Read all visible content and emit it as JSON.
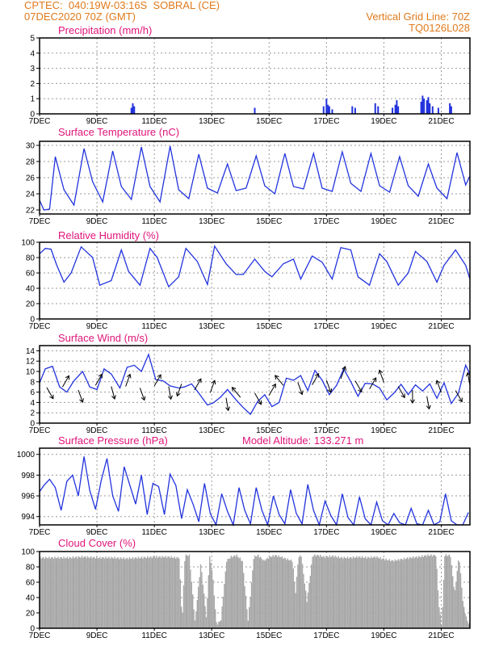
{
  "header": {
    "left_line1": "CPTEC:  040:19W-03:16S  SOBRAL (CE)",
    "left_line2": "07DEC2020 70Z (GMT)",
    "right_line1": "Vertical Grid Line: 70Z",
    "right_line2": "TQ0126L028"
  },
  "colors": {
    "header": "#e07a1c",
    "title": "#e0157a",
    "line": "#2233dd",
    "bar": "#2233dd",
    "cloud": "#a8a8a8"
  },
  "x_ticks": [
    "7DEC",
    "9DEC",
    "11DEC",
    "13DEC",
    "15DEC",
    "17DEC",
    "19DEC",
    "21DEC"
  ],
  "chart_data": [
    {
      "type": "bar",
      "title": "Precipitation (mm/h)",
      "x_start_day": 7,
      "x_end_day": 22,
      "ylim": [
        0,
        5
      ],
      "yticks": [
        0,
        1,
        2,
        3,
        4,
        5
      ],
      "x": [
        10.2,
        10.25,
        10.3,
        14.5,
        16.9,
        17.0,
        17.05,
        17.1,
        17.2,
        17.9,
        18.0,
        18.7,
        18.8,
        19.3,
        19.4,
        19.45,
        19.5,
        20.3,
        20.35,
        20.4,
        20.5,
        20.55,
        20.6,
        20.7,
        20.9,
        21.3,
        21.35
      ],
      "values": [
        0.4,
        0.7,
        0.5,
        0.4,
        0.5,
        1.0,
        0.6,
        0.5,
        0.3,
        0.5,
        0.4,
        0.7,
        0.5,
        0.4,
        0.6,
        0.9,
        0.5,
        0.8,
        1.2,
        1.0,
        0.9,
        1.1,
        0.7,
        0.5,
        0.4,
        0.7,
        0.5
      ]
    },
    {
      "type": "line",
      "title": "Surface Temperature (nC)",
      "x_start_day": 7,
      "x_end_day": 22,
      "ylim": [
        21.5,
        30.5
      ],
      "yticks": [
        22,
        24,
        26,
        28,
        30
      ],
      "x": [
        7.0,
        7.15,
        7.35,
        7.55,
        7.85,
        8.2,
        8.55,
        8.85,
        9.2,
        9.55,
        9.85,
        10.2,
        10.55,
        10.85,
        11.2,
        11.55,
        11.85,
        12.2,
        12.55,
        12.85,
        13.2,
        13.55,
        13.85,
        14.2,
        14.55,
        14.85,
        15.2,
        15.55,
        15.85,
        16.2,
        16.55,
        16.85,
        17.2,
        17.55,
        17.85,
        18.2,
        18.55,
        18.85,
        19.2,
        19.55,
        19.85,
        20.2,
        20.55,
        20.85,
        21.2,
        21.55,
        21.85,
        22.0
      ],
      "values": [
        23.2,
        22.0,
        22.1,
        28.6,
        24.5,
        22.6,
        29.6,
        25.5,
        23.0,
        29.3,
        24.9,
        23.3,
        29.8,
        24.9,
        23.0,
        29.9,
        24.5,
        23.4,
        28.9,
        24.7,
        24.1,
        27.7,
        24.4,
        24.7,
        28.7,
        25.0,
        24.0,
        29.0,
        24.9,
        24.6,
        29.0,
        24.7,
        24.3,
        29.2,
        25.3,
        24.3,
        29.0,
        25.0,
        24.2,
        28.6,
        25.0,
        23.7,
        27.7,
        24.7,
        23.4,
        29.1,
        25.1,
        26.2
      ]
    },
    {
      "type": "line",
      "title": "Relative Humidity (%)",
      "x_start_day": 7,
      "x_end_day": 22,
      "ylim": [
        0,
        100
      ],
      "yticks": [
        0,
        20,
        40,
        60,
        80,
        100
      ],
      "x": [
        7.0,
        7.2,
        7.4,
        7.6,
        7.85,
        8.1,
        8.45,
        8.85,
        9.1,
        9.5,
        9.85,
        10.1,
        10.5,
        10.85,
        11.1,
        11.5,
        11.85,
        12.1,
        12.5,
        12.85,
        13.1,
        13.5,
        13.85,
        14.1,
        14.5,
        14.85,
        15.1,
        15.5,
        15.85,
        16.1,
        16.5,
        16.85,
        17.2,
        17.5,
        17.85,
        18.1,
        18.5,
        18.85,
        19.1,
        19.5,
        19.85,
        20.1,
        20.5,
        20.85,
        21.1,
        21.5,
        21.85,
        22.0
      ],
      "values": [
        85,
        92,
        91,
        70,
        48,
        60,
        94,
        80,
        44,
        50,
        90,
        62,
        44,
        92,
        80,
        42,
        55,
        92,
        75,
        45,
        95,
        72,
        58,
        58,
        78,
        62,
        55,
        72,
        78,
        52,
        82,
        74,
        52,
        93,
        90,
        55,
        44,
        85,
        75,
        44,
        60,
        88,
        75,
        48,
        70,
        90,
        70,
        52
      ]
    },
    {
      "type": "line",
      "title": "Surface Wind (m/s)",
      "x_start_day": 7,
      "x_end_day": 22,
      "ylim": [
        0,
        15
      ],
      "yticks": [
        0,
        2,
        4,
        6,
        8,
        10,
        12,
        14
      ],
      "x": [
        7.0,
        7.2,
        7.45,
        7.7,
        7.95,
        8.2,
        8.5,
        8.75,
        9.0,
        9.25,
        9.5,
        9.8,
        10.05,
        10.3,
        10.55,
        10.8,
        11.05,
        11.3,
        11.55,
        11.85,
        12.05,
        12.3,
        12.55,
        12.85,
        13.05,
        13.3,
        13.55,
        13.85,
        14.1,
        14.35,
        14.6,
        14.85,
        15.1,
        15.35,
        15.6,
        15.85,
        16.1,
        16.35,
        16.6,
        16.85,
        17.1,
        17.35,
        17.6,
        17.85,
        18.1,
        18.35,
        18.6,
        18.85,
        19.1,
        19.35,
        19.6,
        19.85,
        20.1,
        20.35,
        20.6,
        20.85,
        21.1,
        21.35,
        21.6,
        21.85,
        22.0
      ],
      "values": [
        7.8,
        10.5,
        11.0,
        7.0,
        6.0,
        8.2,
        10.0,
        7.0,
        6.5,
        10.5,
        9.5,
        6.8,
        10.8,
        11.2,
        10.0,
        13.3,
        8.4,
        8.2,
        7.2,
        6.8,
        7.0,
        7.6,
        5.8,
        3.5,
        3.9,
        5.0,
        6.5,
        4.5,
        3.0,
        1.7,
        4.2,
        5.5,
        3.2,
        4.0,
        8.7,
        8.3,
        9.2,
        6.3,
        10.2,
        8.3,
        5.5,
        7.3,
        10.5,
        8.0,
        5.2,
        7.7,
        7.6,
        6.8,
        4.5,
        5.8,
        7.5,
        5.5,
        7.4,
        6.2,
        7.6,
        4.8,
        7.8,
        3.8,
        5.8,
        11.2,
        9.5
      ]
    },
    {
      "type": "line",
      "title": "Surface Pressure (hPa)",
      "annotation": "Model Altitude: 133.271  m",
      "x_start_day": 7,
      "x_end_day": 22,
      "ylim": [
        993.2,
        1000.6
      ],
      "yticks": [
        994,
        996,
        998,
        1000
      ],
      "x": [
        7.0,
        7.15,
        7.35,
        7.55,
        7.75,
        7.95,
        8.15,
        8.35,
        8.55,
        8.75,
        8.95,
        9.15,
        9.35,
        9.55,
        9.75,
        9.95,
        10.15,
        10.35,
        10.55,
        10.75,
        10.95,
        11.15,
        11.35,
        11.55,
        11.75,
        11.95,
        12.15,
        12.35,
        12.55,
        12.75,
        12.95,
        13.15,
        13.35,
        13.55,
        13.75,
        13.95,
        14.15,
        14.35,
        14.55,
        14.75,
        14.95,
        15.15,
        15.35,
        15.55,
        15.75,
        15.95,
        16.15,
        16.35,
        16.55,
        16.75,
        16.95,
        17.15,
        17.35,
        17.55,
        17.75,
        17.95,
        18.15,
        18.35,
        18.55,
        18.75,
        18.95,
        19.15,
        19.35,
        19.55,
        19.75,
        19.95,
        20.15,
        20.35,
        20.55,
        20.75,
        20.95,
        21.15,
        21.35,
        21.55,
        21.75,
        21.95
      ],
      "values": [
        996.4,
        997.0,
        997.6,
        996.8,
        994.6,
        997.4,
        998.0,
        996.0,
        999.8,
        996.5,
        994.7,
        997.5,
        999.6,
        996.0,
        994.5,
        998.8,
        997.0,
        995.2,
        998.0,
        994.2,
        997.2,
        996.9,
        994.2,
        998.1,
        997.0,
        993.8,
        996.6,
        995.2,
        993.5,
        997.2,
        994.3,
        993.2,
        996.2,
        994.5,
        993.2,
        996.8,
        994.6,
        993.3,
        996.8,
        994.6,
        993.2,
        996.0,
        994.2,
        993.3,
        996.6,
        994.3,
        993.3,
        997.1,
        994.6,
        993.2,
        995.5,
        994.1,
        993.2,
        996.2,
        993.9,
        993.2,
        995.9,
        993.8,
        993.2,
        995.4,
        993.6,
        993.2,
        994.3,
        993.4,
        993.2,
        994.8,
        993.3,
        993.2,
        994.6,
        993.2,
        993.5,
        996.2,
        993.6,
        993.2,
        993.2,
        994.4
      ]
    },
    {
      "type": "area",
      "title": "Cloud Cover (%)",
      "x_start_day": 7,
      "x_end_day": 22,
      "ylim": [
        0,
        100
      ],
      "yticks": [
        0,
        20,
        40,
        60,
        80,
        100
      ],
      "x": [
        7.0,
        7.5,
        8.0,
        8.5,
        9.0,
        9.5,
        10.0,
        10.5,
        11.0,
        11.5,
        11.7,
        11.85,
        11.95,
        12.05,
        12.2,
        12.4,
        12.6,
        12.8,
        12.9,
        13.0,
        13.15,
        13.3,
        13.5,
        13.65,
        13.85,
        14.05,
        14.25,
        14.45,
        14.6,
        14.8,
        15.0,
        15.2,
        15.4,
        15.6,
        15.8,
        15.9,
        16.0,
        16.1,
        16.3,
        16.5,
        16.7,
        16.9,
        17.2,
        17.5,
        17.8,
        18.1,
        18.4,
        18.7,
        19.0,
        19.3,
        19.6,
        19.9,
        20.2,
        20.5,
        20.8,
        20.9,
        21.0,
        21.1,
        21.3,
        21.45,
        21.6,
        21.75,
        21.9,
        22.0
      ],
      "values": [
        92,
        92,
        92,
        93,
        92,
        92,
        91,
        92,
        93,
        93,
        92,
        92,
        8,
        95,
        95,
        8,
        85,
        12,
        95,
        75,
        5,
        10,
        88,
        93,
        95,
        88,
        10,
        93,
        95,
        88,
        93,
        95,
        93,
        90,
        88,
        45,
        92,
        95,
        35,
        95,
        95,
        93,
        94,
        92,
        92,
        93,
        92,
        93,
        90,
        88,
        90,
        92,
        93,
        95,
        95,
        30,
        2,
        95,
        95,
        45,
        95,
        30,
        8,
        6
      ]
    }
  ],
  "wind_barbs": {
    "unit": "m/s",
    "x": [
      7.25,
      7.8,
      8.35,
      8.95,
      9.5,
      10.0,
      10.5,
      11.0,
      11.5,
      11.95,
      12.4,
      12.95,
      13.5,
      14.0,
      14.5,
      15.0,
      15.5,
      16.0,
      16.5,
      17.0,
      17.5,
      18.0,
      18.5,
      19.0,
      19.5,
      20.0,
      20.5,
      21.0,
      21.5,
      22.0
    ],
    "speed": [
      6.9,
      7.0,
      6.4,
      7.3,
      7.1,
      7.1,
      6.8,
      7.2,
      7.1,
      7.6,
      6.4,
      5.9,
      4.9,
      5.0,
      5.8,
      5.4,
      7.3,
      7.9,
      7.4,
      8.3,
      8.6,
      8.2,
      6.6,
      7.9,
      7.1,
      6.4,
      5.2,
      5.9,
      6.3,
      7.3
    ],
    "direction_deg": [
      60,
      300,
      70,
      300,
      75,
      290,
      70,
      300,
      80,
      110,
      300,
      290,
      80,
      230,
      60,
      300,
      230,
      70,
      300,
      70,
      290,
      60,
      300,
      250,
      60,
      90,
      80,
      250,
      60,
      260
    ]
  }
}
